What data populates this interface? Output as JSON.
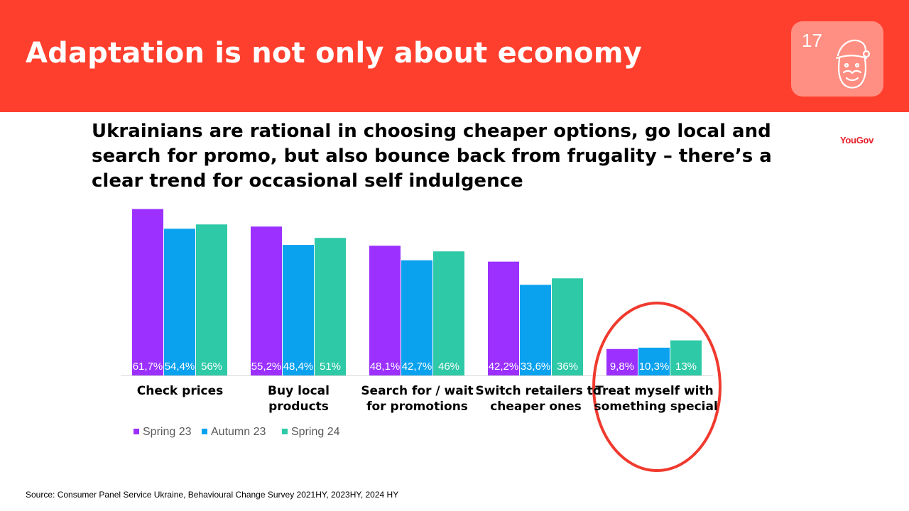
{
  "slide": {
    "title": "Adaptation is not only about economy",
    "page_number": "17",
    "subtitle_lines": [
      "Ukrainians are rational in choosing cheaper options, go local and",
      "search for promo, but also bounce back from frugality – there’s a",
      "clear trend for occasional self indulgence"
    ],
    "brand": "YouGov",
    "source": "Source:  Consumer Panel Service Ukraine, Behavioural Change Survey 2021HY, 2023HY, 2024 HY",
    "badge_icon": "santa-icon"
  },
  "colors": {
    "header": "#ff3f2e",
    "badge": "#ff8f82",
    "brand": "#e8202c",
    "highlight_circle": "#f03a2e"
  },
  "chart_data": {
    "type": "bar",
    "categories": [
      [
        "Check prices"
      ],
      [
        "Buy local",
        "products"
      ],
      [
        "Search for / wait",
        "for promotions"
      ],
      [
        "Switch retailers to",
        "cheaper ones"
      ],
      [
        "Treat myself with",
        "something special"
      ]
    ],
    "series": [
      {
        "name": "Spring 23",
        "color": "#9b30ff",
        "values": [
          61.7,
          55.2,
          48.1,
          42.2,
          9.8
        ],
        "labels": [
          "61,7%",
          "55,2%",
          "48,1%",
          "42,2%",
          "9,8%"
        ]
      },
      {
        "name": "Autumn 23",
        "color": "#0aa2ee",
        "values": [
          54.4,
          48.4,
          42.7,
          33.6,
          10.3
        ],
        "labels": [
          "54,4%",
          "48,4%",
          "42,7%",
          "33,6%",
          "10,3%"
        ]
      },
      {
        "name": "Spring 24",
        "color": "#2ec9a6",
        "values": [
          56,
          51,
          46,
          36,
          13
        ],
        "labels": [
          "56%",
          "51%",
          "46%",
          "36%",
          "13%"
        ]
      }
    ],
    "highlighted_category": "Treat myself with something special",
    "legend_position": "bottom-left",
    "grid": false,
    "value_axis_visible": false
  }
}
